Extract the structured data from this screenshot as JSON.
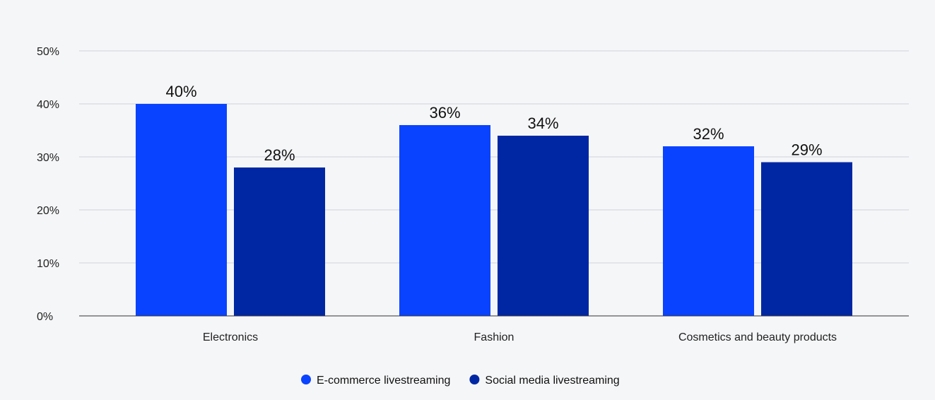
{
  "chart_data": {
    "type": "bar",
    "title": "",
    "xlabel": "",
    "ylabel": "",
    "categories": [
      "Electronics",
      "Fashion",
      "Cosmetics and beauty products"
    ],
    "series": [
      {
        "name": "E-commerce livestreaming",
        "values": [
          40,
          36,
          32
        ],
        "labels": [
          "40%",
          "36%",
          "32%"
        ],
        "color": "#0a43ff"
      },
      {
        "name": "Social media livestreaming",
        "values": [
          28,
          34,
          29
        ],
        "labels": [
          "28%",
          "34%",
          "29%"
        ],
        "color": "#0027a3"
      }
    ],
    "ylim": [
      0,
      50
    ],
    "yticks": [
      0,
      10,
      20,
      30,
      40,
      50
    ],
    "ytick_labels": [
      "0%",
      "10%",
      "20%",
      "30%",
      "40%",
      "50%"
    ],
    "grid": true,
    "legend_position": "bottom-center",
    "background": "#f5f6f8"
  }
}
